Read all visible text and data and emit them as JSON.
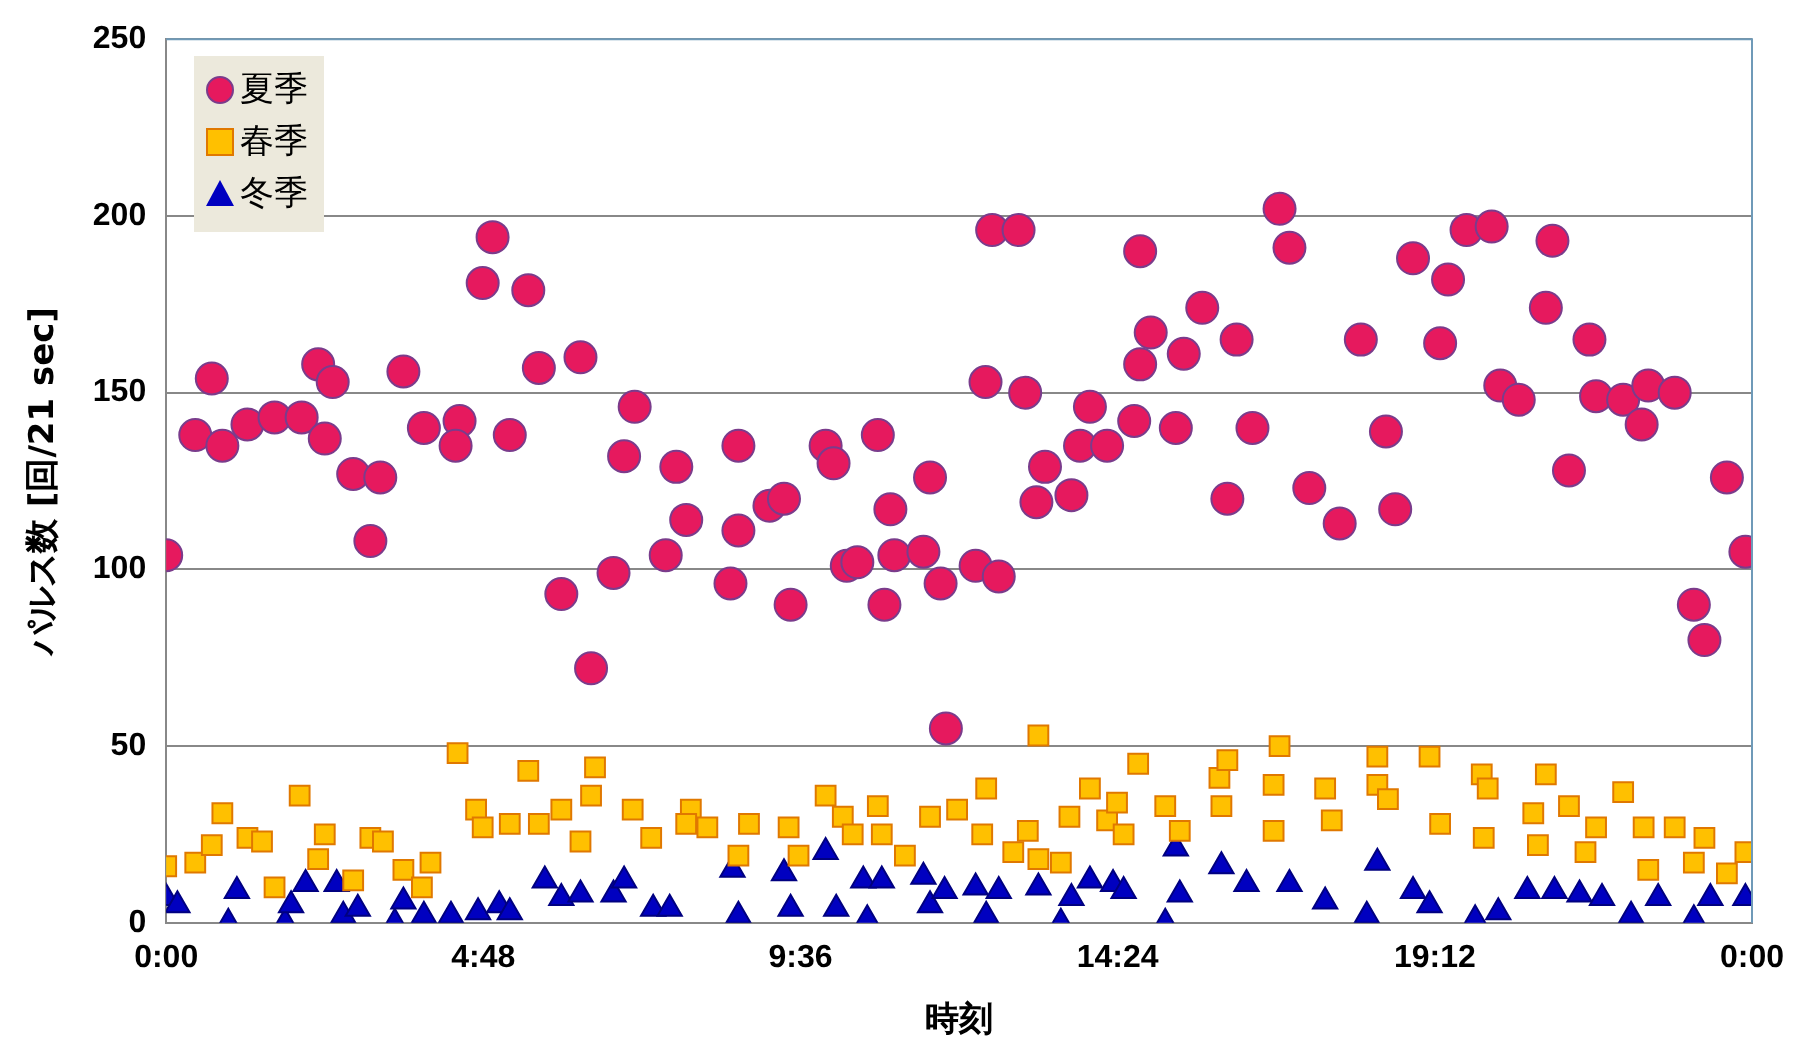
{
  "chart_data": {
    "type": "scatter",
    "xlabel": "時刻",
    "ylabel": "パルス数 [回/21 sec]",
    "xlim": [
      0,
      24
    ],
    "xticks": [
      {
        "value": 0,
        "label": "0:00"
      },
      {
        "value": 4.8,
        "label": "4:48"
      },
      {
        "value": 9.6,
        "label": "9:36"
      },
      {
        "value": 14.4,
        "label": "14:24"
      },
      {
        "value": 19.2,
        "label": "19:12"
      },
      {
        "value": 24,
        "label": "0:00"
      }
    ],
    "ylim": [
      0,
      250
    ],
    "yticks": [
      0,
      50,
      100,
      150,
      200,
      250
    ],
    "grid": "y",
    "legend": "top left",
    "series": [
      {
        "name": "夏季",
        "color": "#e6195e",
        "marker": "circle",
        "x": [
          0,
          0.44,
          0.69,
          0.85,
          1.23,
          1.64,
          2.05,
          2.3,
          2.52,
          2.4,
          2.83,
          3.24,
          3.09,
          3.59,
          3.9,
          4.44,
          4.38,
          4.94,
          4.79,
          5.48,
          5.2,
          5.64,
          6.27,
          5.98,
          6.43,
          6.77,
          7.09,
          6.93,
          7.56,
          7.72,
          7.87,
          8.66,
          8.54,
          8.66,
          9.13,
          9.35,
          9.45,
          9.98,
          10.1,
          10.77,
          10.3,
          10.46,
          10.96,
          11.02,
          10.87,
          11.56,
          11.46,
          11.72,
          12.25,
          12.6,
          11.8,
          12.4,
          13.0,
          12.5,
          12.9,
          13.3,
          13.17,
          13.7,
          13.98,
          13.83,
          14.24,
          14.65,
          15.28,
          14.74,
          14.9,
          15.4,
          14.74,
          15.68,
          16.2,
          16.44,
          16.06,
          16.85,
          17.0,
          17.3,
          17.76,
          18.08,
          18.46,
          18.6,
          18.87,
          19.4,
          19.28,
          19.68,
          20.06,
          20.19,
          20.47,
          20.98,
          20.88,
          21.54,
          21.23,
          21.64,
          22.05,
          22.43,
          22.33,
          22.83,
          23.12,
          23.28,
          23.62,
          23.9
        ],
        "values": [
          104,
          138,
          154,
          135,
          141,
          143,
          143,
          158,
          153,
          137,
          127,
          126,
          108,
          156,
          140,
          142,
          135,
          194,
          181,
          179,
          138,
          157,
          160,
          93,
          72,
          99,
          146,
          132,
          104,
          129,
          114,
          135,
          96,
          111,
          118,
          120,
          90,
          135,
          130,
          138,
          101,
          102,
          117,
          104,
          90,
          126,
          105,
          96,
          101,
          98,
          55,
          153,
          150,
          196,
          196,
          129,
          119,
          121,
          146,
          135,
          135,
          142,
          140,
          158,
          167,
          161,
          190,
          174,
          165,
          140,
          120,
          202,
          191,
          123,
          113,
          165,
          139,
          117,
          188,
          182,
          164,
          196,
          197,
          152,
          148,
          193,
          174,
          165,
          128,
          149,
          148,
          152,
          141,
          150,
          90,
          80,
          126,
          105
        ]
      },
      {
        "name": "春季",
        "color": "#ffc000",
        "marker": "square",
        "x": [
          0,
          0.44,
          0.69,
          0.85,
          1.23,
          1.45,
          1.64,
          2.02,
          2.3,
          2.4,
          2.83,
          3.09,
          3.28,
          3.59,
          4.0,
          3.87,
          4.41,
          4.69,
          4.79,
          5.2,
          5.48,
          5.64,
          5.98,
          6.27,
          6.43,
          6.49,
          7.06,
          7.34,
          7.94,
          7.87,
          8.19,
          8.66,
          8.82,
          9.42,
          9.57,
          9.98,
          10.24,
          10.39,
          10.77,
          10.83,
          11.18,
          11.56,
          11.97,
          12.41,
          12.35,
          12.82,
          13.04,
          13.2,
          13.2,
          13.54,
          13.67,
          13.98,
          14.24,
          14.39,
          14.49,
          14.71,
          15.12,
          15.34,
          15.94,
          16.06,
          15.97,
          16.76,
          16.85,
          16.76,
          17.54,
          17.64,
          18.33,
          18.33,
          18.49,
          19.12,
          19.28,
          19.91,
          20.0,
          19.94,
          20.69,
          20.88,
          20.76,
          21.23,
          21.64,
          21.48,
          22.05,
          22.36,
          22.43,
          22.83,
          23.12,
          23.28,
          23.62,
          23.9
        ],
        "values": [
          16,
          17,
          22,
          31,
          24,
          23,
          10,
          36,
          18,
          25,
          12,
          24,
          23,
          15,
          17,
          10,
          48,
          32,
          27,
          28,
          43,
          28,
          32,
          23,
          36,
          44,
          32,
          24,
          32,
          28,
          27,
          19,
          28,
          27,
          19,
          36,
          30,
          25,
          33,
          25,
          19,
          30,
          32,
          38,
          25,
          20,
          26,
          53,
          18,
          17,
          30,
          38,
          29,
          34,
          25,
          45,
          33,
          26,
          41,
          46,
          33,
          39,
          50,
          26,
          38,
          29,
          47,
          39,
          35,
          47,
          28,
          42,
          38,
          24,
          31,
          42,
          22,
          33,
          27,
          20,
          37,
          27,
          15,
          27,
          17,
          24,
          14,
          20
        ]
      },
      {
        "name": "冬季",
        "color": "#0000c0",
        "marker": "triangle",
        "x": [
          0,
          0.17,
          0.94,
          1.07,
          1.8,
          1.89,
          2.11,
          2.58,
          2.68,
          2.9,
          3.46,
          3.59,
          3.9,
          4.31,
          4.72,
          5.04,
          5.2,
          5.73,
          5.98,
          6.27,
          6.77,
          6.93,
          7.37,
          7.62,
          8.57,
          8.66,
          9.35,
          9.45,
          9.98,
          10.14,
          10.55,
          10.61,
          10.83,
          11.46,
          11.56,
          11.78,
          12.25,
          12.6,
          12.41,
          13.2,
          13.54,
          13.7,
          13.98,
          14.33,
          14.49,
          15.28,
          15.12,
          15.34,
          15.97,
          16.35,
          17.0,
          17.54,
          18.17,
          18.33,
          18.87,
          19.12,
          19.81,
          20.16,
          20.6,
          21.01,
          21.39,
          21.73,
          22.17,
          22.58,
          23.12,
          23.37,
          23.9
        ],
        "values": [
          7,
          5,
          0,
          9,
          0,
          5,
          11,
          11,
          2,
          4,
          0,
          6,
          2,
          2,
          3,
          5,
          3,
          12,
          7,
          8,
          8,
          12,
          4,
          4,
          15,
          2,
          14,
          4,
          20,
          4,
          12,
          1,
          12,
          13,
          5,
          9,
          10,
          9,
          2,
          10,
          0,
          7,
          12,
          11,
          9,
          21,
          0,
          8,
          16,
          11,
          11,
          6,
          2,
          17,
          9,
          5,
          1,
          3,
          9,
          9,
          8,
          7,
          2,
          7,
          1,
          7,
          7
        ]
      }
    ]
  }
}
